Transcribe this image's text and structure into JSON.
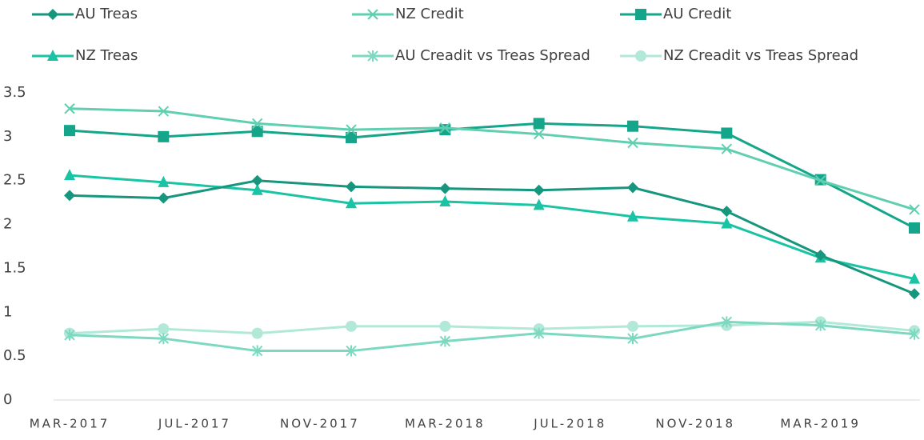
{
  "chart_data": {
    "type": "line",
    "x": [
      "2017-03",
      "2017-06",
      "2017-09",
      "2017-12",
      "2018-03",
      "2018-06",
      "2018-09",
      "2018-12",
      "2019-03",
      "2019-06"
    ],
    "series": [
      {
        "name": "AU Treas",
        "color": "#16967d",
        "marker": "diamond",
        "values": [
          2.33,
          2.3,
          2.5,
          2.43,
          2.41,
          2.39,
          2.42,
          2.15,
          1.65,
          1.21
        ]
      },
      {
        "name": "NZ Credit",
        "color": "#5fcfb0",
        "marker": "x",
        "values": [
          3.32,
          3.29,
          3.15,
          3.08,
          3.1,
          3.03,
          2.93,
          2.86,
          2.5,
          2.17
        ]
      },
      {
        "name": "AU Credit",
        "color": "#14a58a",
        "marker": "square",
        "values": [
          3.07,
          3.0,
          3.06,
          2.99,
          3.08,
          3.15,
          3.12,
          3.04,
          2.51,
          1.96
        ]
      },
      {
        "name": "NZ Treas",
        "color": "#19c3a3",
        "marker": "triangle",
        "values": [
          2.56,
          2.48,
          2.39,
          2.24,
          2.26,
          2.22,
          2.09,
          2.01,
          1.62,
          1.38
        ]
      },
      {
        "name": "AU Creadit vs Treas Spread",
        "color": "#7dd8c0",
        "marker": "asterisk",
        "values": [
          0.74,
          0.7,
          0.56,
          0.56,
          0.67,
          0.76,
          0.7,
          0.89,
          0.85,
          0.75
        ]
      },
      {
        "name": "NZ Creadit vs Treas Spread",
        "color": "#b2e8d8",
        "marker": "circle",
        "values": [
          0.76,
          0.81,
          0.76,
          0.84,
          0.84,
          0.81,
          0.84,
          0.85,
          0.89,
          0.79
        ]
      }
    ],
    "xlim": [
      "2017-03",
      "2019-06"
    ],
    "xticks": [
      {
        "value": "2017-03",
        "label": "MAR-2017"
      },
      {
        "value": "2017-07",
        "label": "JUL-2017"
      },
      {
        "value": "2017-11",
        "label": "NOV-2017"
      },
      {
        "value": "2018-03",
        "label": "MAR-2018"
      },
      {
        "value": "2018-07",
        "label": "JUL-2018"
      },
      {
        "value": "2018-11",
        "label": "NOV-2018"
      },
      {
        "value": "2019-03",
        "label": "MAR-2019"
      }
    ],
    "ylim": [
      0,
      3.5
    ],
    "yticks": [
      0,
      0.5,
      1,
      1.5,
      2,
      2.5,
      3,
      3.5
    ],
    "grid": false,
    "legend": "top"
  }
}
